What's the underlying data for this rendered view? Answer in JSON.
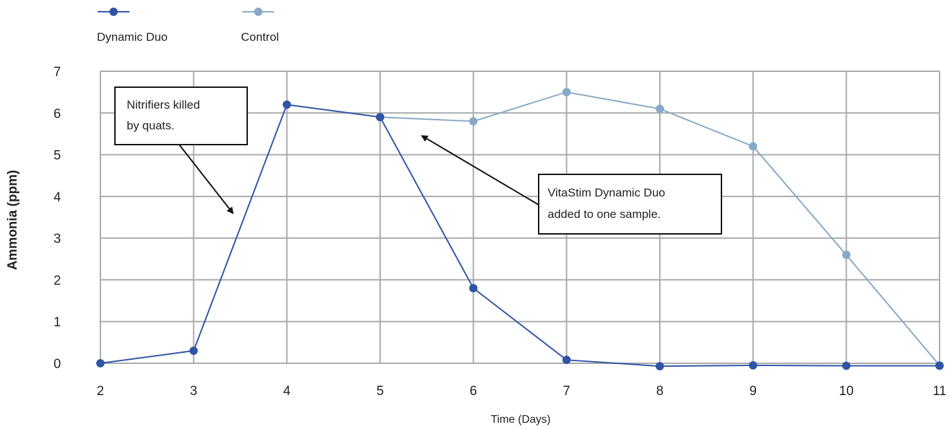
{
  "chart_data": {
    "type": "line",
    "xlabel": "Time (Days)",
    "ylabel": "Ammonia (ppm)",
    "xlim": [
      2,
      11
    ],
    "ylim": [
      0,
      7
    ],
    "x_ticks": [
      "2",
      "3",
      "4",
      "5",
      "6",
      "7",
      "8",
      "9",
      "10",
      "11"
    ],
    "y_ticks": [
      "0",
      "1",
      "2",
      "3",
      "4",
      "5",
      "6",
      "7"
    ],
    "grid": true,
    "legend_position": "top-left",
    "series": [
      {
        "name": "Dynamic Duo",
        "color": "#2f55a4",
        "x": [
          2,
          3,
          4,
          5,
          6,
          7,
          8,
          9,
          10,
          11
        ],
        "y": [
          0,
          0.3,
          6.2,
          5.9,
          1.8,
          0.08,
          -0.07,
          -0.05,
          -0.06,
          -0.06
        ]
      },
      {
        "name": "Control",
        "color": "#87a9c6",
        "x": [
          5,
          6,
          7,
          8,
          9,
          10,
          11
        ],
        "y": [
          5.9,
          5.8,
          6.5,
          6.1,
          5.2,
          2.6,
          -0.05
        ]
      }
    ],
    "annotations": [
      {
        "lines": [
          "Nitrifiers killed",
          "by quats."
        ],
        "arrow_to": {
          "x": 3.42,
          "y": 3.6
        }
      },
      {
        "lines": [
          "VitaStim Dynamic Duo",
          "added to one sample."
        ],
        "arrow_to": {
          "x": 5.45,
          "y": 5.45
        }
      }
    ]
  }
}
